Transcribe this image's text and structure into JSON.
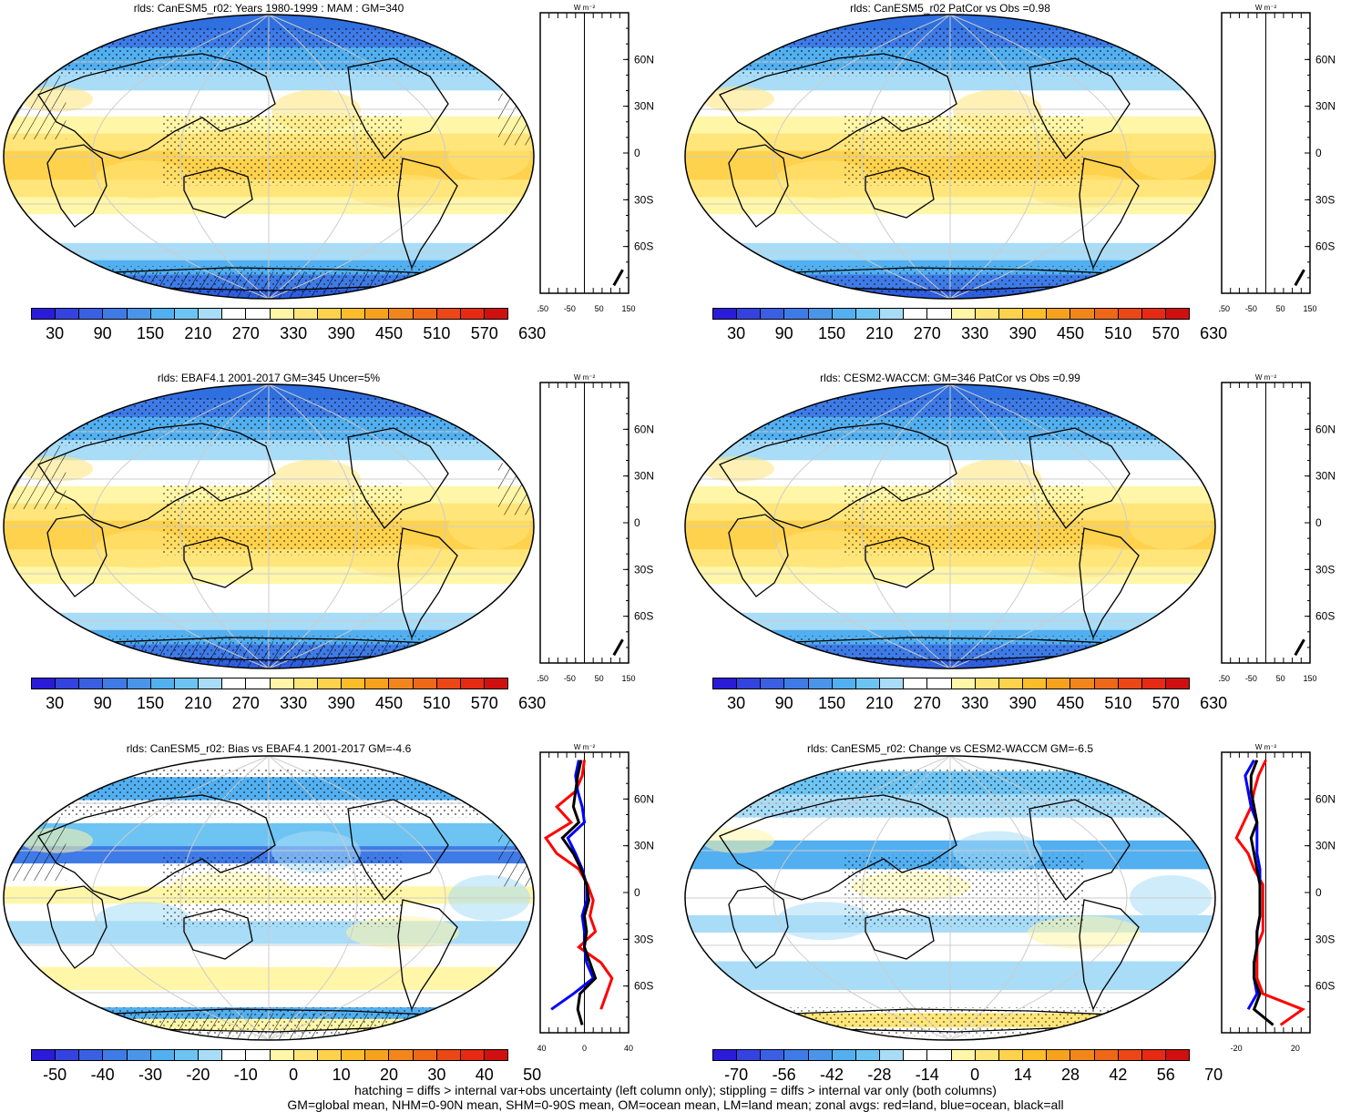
{
  "panels": [
    {
      "title": "rlds: CanESM5_r02: Years 1980-1999 : MAM : GM=340",
      "scale": "abs",
      "hatch": true,
      "stipple": true,
      "zonal": "abs1"
    },
    {
      "title": "rlds: CanESM5_r02 PatCor vs Obs =0.98",
      "scale": "abs",
      "hatch": false,
      "stipple": true,
      "zonal": "abs1"
    },
    {
      "title": "rlds: EBAF4.1 2001-2017 GM=345 Uncer=5%",
      "scale": "abs",
      "hatch": true,
      "stipple": true,
      "zonal": "abs2"
    },
    {
      "title": "rlds: CESM2-WACCM: GM=346 PatCor vs Obs =0.99",
      "scale": "abs",
      "hatch": false,
      "stipple": true,
      "zonal": "abs2"
    },
    {
      "title": "rlds: CanESM5_r02: Bias vs EBAF4.1 2001-2017 GM=-4.6",
      "scale": "bias",
      "hatch": true,
      "stipple": true,
      "zonal": "bias"
    },
    {
      "title": "rlds: CanESM5_r02: Change vs CESM2-WACCM GM=-6.5",
      "scale": "change",
      "hatch": false,
      "stipple": true,
      "zonal": "change"
    }
  ],
  "colorbars": {
    "abs": {
      "labels": [
        "30",
        "90",
        "150",
        "210",
        "270",
        "330",
        "390",
        "450",
        "510",
        "570",
        "630"
      ],
      "colors": [
        "#2a1bd9",
        "#3443e0",
        "#3a5fe3",
        "#3f7be6",
        "#4a95ea",
        "#52aff0",
        "#6dc4f2",
        "#a8dcf7",
        "#ffffff",
        "#ffffff",
        "#fff6a8",
        "#ffe57a",
        "#ffd24d",
        "#fbbd2a",
        "#f7a21d",
        "#f2861a",
        "#ef6818",
        "#ec4716",
        "#e62a13",
        "#d01010"
      ]
    },
    "bias": {
      "labels": [
        "-50",
        "-40",
        "-30",
        "-20",
        "-10",
        "0",
        "10",
        "20",
        "30",
        "40",
        "50"
      ],
      "colors": [
        "#2a1bd9",
        "#3443e0",
        "#3a5fe3",
        "#3f7be6",
        "#4a95ea",
        "#52aff0",
        "#6dc4f2",
        "#a8dcf7",
        "#ffffff",
        "#ffffff",
        "#fff6a8",
        "#ffe57a",
        "#ffd24d",
        "#fbbd2a",
        "#f7a21d",
        "#f2861a",
        "#ef6818",
        "#ec4716",
        "#e62a13",
        "#d01010"
      ]
    },
    "change": {
      "labels": [
        "-70",
        "-56",
        "-42",
        "-28",
        "-14",
        "0",
        "14",
        "28",
        "42",
        "56",
        "70"
      ],
      "colors": [
        "#2a1bd9",
        "#3443e0",
        "#3a5fe3",
        "#3f7be6",
        "#4a95ea",
        "#52aff0",
        "#6dc4f2",
        "#a8dcf7",
        "#ffffff",
        "#ffffff",
        "#fff6a8",
        "#ffe57a",
        "#ffd24d",
        "#fbbd2a",
        "#f7a21d",
        "#f2861a",
        "#ef6818",
        "#ec4716",
        "#e62a13",
        "#d01010"
      ]
    }
  },
  "zonal_axes": {
    "abs": {
      "x_ticks": [
        "-150",
        "-50",
        "50",
        "150"
      ],
      "unit": "W m⁻²"
    },
    "bias": {
      "x_ticks": [
        "-40",
        "0",
        "40"
      ],
      "unit": "W m⁻²"
    },
    "change": {
      "x_ticks": [
        "-20",
        "20"
      ],
      "unit": "W m⁻²"
    },
    "lat_labels": [
      "60N",
      "30N",
      "0",
      "30S",
      "60S"
    ]
  },
  "zonal_profiles": {
    "lat": [
      85,
      75,
      65,
      55,
      45,
      35,
      25,
      15,
      5,
      -5,
      -15,
      -25,
      -35,
      -45,
      -55,
      -65,
      -75,
      -85
    ],
    "abs1": {
      "all": [
        null,
        null,
        null,
        null,
        null,
        null,
        null,
        null,
        null,
        null,
        null,
        null,
        null,
        null,
        null,
        null,
        130,
        100
      ],
      "land": [
        null,
        null,
        null,
        null,
        null,
        null,
        null,
        null,
        null,
        null,
        null,
        null,
        null,
        null,
        null,
        null,
        150,
        null
      ]
    },
    "abs2": {
      "all": [
        null,
        null,
        null,
        null,
        null,
        null,
        null,
        null,
        null,
        null,
        null,
        null,
        null,
        null,
        null,
        null,
        130,
        100
      ],
      "land": [
        null,
        null,
        null,
        null,
        null,
        null,
        null,
        null,
        null,
        null,
        null,
        null,
        null,
        null,
        null,
        null,
        150,
        null
      ]
    },
    "bias": {
      "land": [
        0,
        -2,
        -8,
        -25,
        -12,
        -35,
        -25,
        -5,
        3,
        8,
        5,
        10,
        -5,
        15,
        25,
        20,
        15,
        null
      ],
      "ocean": [
        -5,
        -8,
        -6,
        -2,
        0,
        -15,
        -8,
        -2,
        2,
        2,
        -2,
        0,
        0,
        2,
        8,
        -10,
        -30,
        null
      ],
      "all": [
        -3,
        -6,
        -8,
        -10,
        -5,
        -20,
        -10,
        -3,
        2,
        4,
        0,
        2,
        0,
        5,
        10,
        -4,
        -6,
        -2
      ]
    },
    "change": {
      "land": [
        0,
        -5,
        -8,
        -10,
        -15,
        -20,
        -12,
        -8,
        -2,
        -2,
        -2,
        -2,
        -6,
        -6,
        -6,
        -2,
        25,
        10
      ],
      "ocean": [
        -8,
        -14,
        -12,
        -10,
        -6,
        -6,
        -6,
        -4,
        -4,
        -4,
        -4,
        -6,
        -6,
        -8,
        -8,
        -6,
        -12,
        null
      ],
      "all": [
        -6,
        -10,
        -10,
        -8,
        -6,
        -10,
        -8,
        -6,
        -4,
        -4,
        -4,
        -6,
        -6,
        -8,
        -8,
        -4,
        -8,
        5
      ]
    }
  },
  "footer": {
    "line1": "hatching = diffs > internal var+obs uncertainty (left column only); stippling = diffs > internal var only (both columns)",
    "line2": "GM=global mean, NHM=0-90N mean, SHM=0-90S mean, OM=ocean mean, LM=land mean; zonal avgs: red=land, blue=ocean, black=all"
  }
}
